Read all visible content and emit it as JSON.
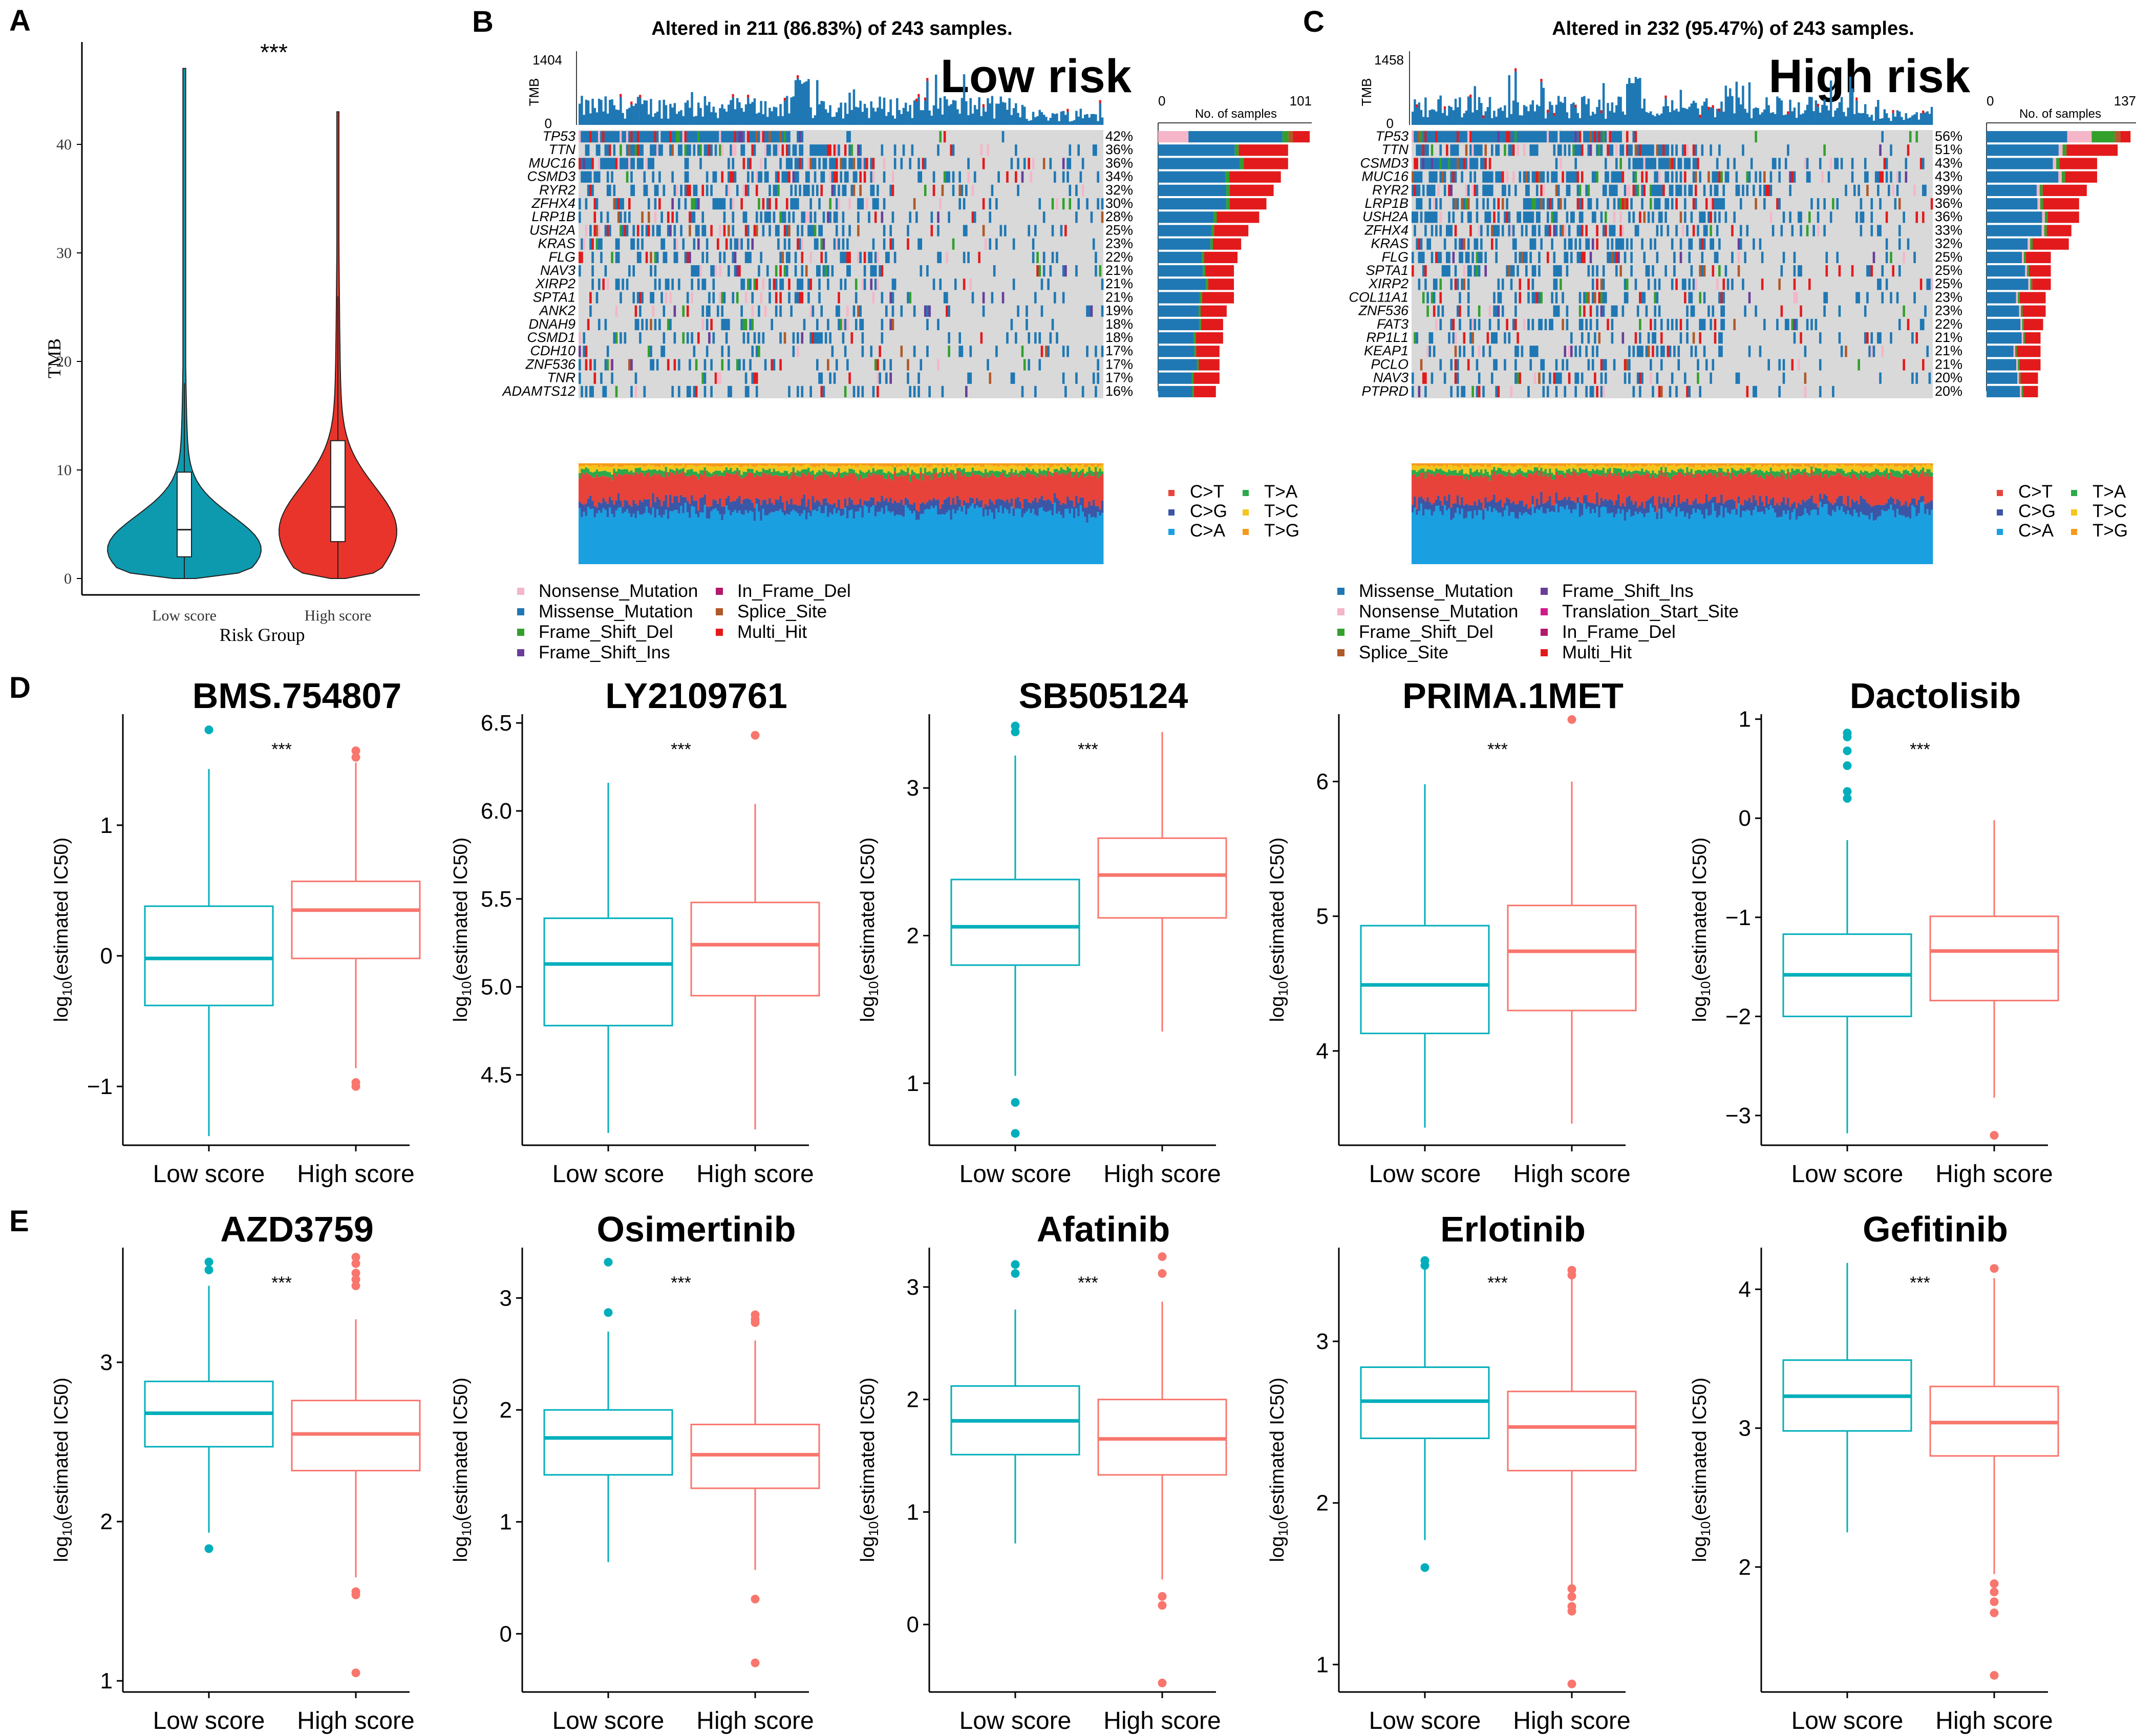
{
  "panel_letters": {
    "a": "A",
    "b": "B",
    "c": "C",
    "d": "D",
    "e": "E"
  },
  "colors": {
    "low": "#00AFBB",
    "high": "#F8766D",
    "violin_low": "#0E9AAE",
    "violin_high": "#E8342A",
    "missense": "#1F78B4",
    "nonsense": "#F4B6C8",
    "frame_shift_del": "#33A02C",
    "frame_shift_ins": "#6A3D9A",
    "in_frame_del": "#B2196A",
    "splice_site": "#B15928",
    "multi_hit": "#E31A1C",
    "translation_start_site": "#D01C8B",
    "grey": "#D9D9D9",
    "ti_CT": "#E8433A",
    "ti_CG": "#3B56A6",
    "ti_CA": "#1AA0E0",
    "ti_TA": "#2DA94A",
    "ti_TC": "#F5C51B",
    "ti_TG": "#F59A1B"
  },
  "panel_a": {
    "stars": "***",
    "ylabel": "TMB",
    "xlabel": "Risk Group",
    "groups": [
      "Low score",
      "High score"
    ],
    "yticks": [
      "0",
      "10",
      "20",
      "30",
      "40"
    ],
    "chart_data": {
      "type": "violin",
      "ylabel": "TMB",
      "xlabel": "Risk Group",
      "ylim": [
        0,
        48
      ],
      "groups": [
        {
          "name": "Low score",
          "min": 0.3,
          "q1": 2.0,
          "median": 4.5,
          "q3": 9.8,
          "max": 47,
          "whisker_high": 18
        },
        {
          "name": "High score",
          "min": 0.3,
          "q1": 3.4,
          "median": 6.6,
          "q3": 12.7,
          "max": 43,
          "whisker_high": 26
        }
      ]
    }
  },
  "oncoplot_b": {
    "title": "Altered in 211 (86.83%) of 243 samples.",
    "risk": "Low risk",
    "tmb_label": "TMB",
    "tmb_max": "1404",
    "tmb_min": "0",
    "bar_label": "No. of samples",
    "bar_min": "0",
    "bar_max": "101",
    "genes": [
      "TP53",
      "TTN",
      "MUC16",
      "CSMD3",
      "RYR2",
      "ZFHX4",
      "LRP1B",
      "USH2A",
      "KRAS",
      "FLG",
      "NAV3",
      "XIRP2",
      "SPTA1",
      "ANK2",
      "DNAH9",
      "CSMD1",
      "CDH10",
      "ZNF536",
      "TNR",
      "ADAMTS12"
    ],
    "pcts": [
      "42%",
      "36%",
      "36%",
      "34%",
      "32%",
      "30%",
      "28%",
      "25%",
      "23%",
      "22%",
      "21%",
      "21%",
      "21%",
      "19%",
      "18%",
      "18%",
      "17%",
      "17%",
      "17%",
      "16%"
    ],
    "legend": [
      "Nonsense_Mutation",
      "Missense_Mutation",
      "Frame_Shift_Del",
      "Frame_Shift_Ins",
      "In_Frame_Del",
      "Splice_Site",
      "Multi_Hit"
    ],
    "ti_legend": [
      "C>T",
      "C>G",
      "C>A",
      "T>A",
      "T>C",
      "T>G"
    ]
  },
  "oncoplot_c": {
    "title": "Altered in 232 (95.47%) of 243 samples.",
    "risk": "High risk",
    "tmb_label": "TMB",
    "tmb_max": "1458",
    "tmb_min": "0",
    "bar_label": "No. of samples",
    "bar_min": "0",
    "bar_max": "137",
    "genes": [
      "TP53",
      "TTN",
      "CSMD3",
      "MUC16",
      "RYR2",
      "LRP1B",
      "USH2A",
      "ZFHX4",
      "KRAS",
      "FLG",
      "SPTA1",
      "XIRP2",
      "COL11A1",
      "ZNF536",
      "FAT3",
      "RP1L1",
      "KEAP1",
      "PCLO",
      "NAV3",
      "PTPRD"
    ],
    "pcts": [
      "56%",
      "51%",
      "43%",
      "43%",
      "39%",
      "36%",
      "36%",
      "33%",
      "32%",
      "25%",
      "25%",
      "25%",
      "23%",
      "23%",
      "22%",
      "21%",
      "21%",
      "21%",
      "20%",
      "20%"
    ],
    "legend": [
      "Missense_Mutation",
      "Nonsense_Mutation",
      "Frame_Shift_Del",
      "Splice_Site",
      "Frame_Shift_Ins",
      "Translation_Start_Site",
      "In_Frame_Del",
      "Multi_Hit"
    ],
    "ti_legend": [
      "C>T",
      "C>G",
      "C>A",
      "T>A",
      "T>C",
      "T>G"
    ]
  },
  "boxplots": {
    "ylabel_prefix": "log",
    "ylabel_sub": "10",
    "ylabel_suffix": "(estimated IC50)",
    "stars": "***",
    "categories": [
      "Low score",
      "High score"
    ],
    "panels": [
      {
        "title": "BMS.754807",
        "yticks": [
          "−1",
          "0",
          "1"
        ],
        "tickvals": [
          -1,
          0,
          1
        ],
        "ylim": [
          -1.45,
          1.85
        ],
        "low": {
          "min": -1.38,
          "q1": -0.38,
          "median": -0.02,
          "q3": 0.38,
          "max": 1.43,
          "outliers": [
            1.73
          ]
        },
        "high": {
          "min": -0.86,
          "q1": -0.02,
          "median": 0.35,
          "q3": 0.57,
          "max": 1.48,
          "outliers": [
            1.57,
            1.52,
            -0.97,
            -1.0
          ]
        }
      },
      {
        "title": "LY2109761",
        "yticks": [
          "4.5",
          "5.0",
          "5.5",
          "6.0",
          "6.5"
        ],
        "tickvals": [
          4.5,
          5.0,
          5.5,
          6.0,
          6.5
        ],
        "ylim": [
          4.1,
          6.55
        ],
        "low": {
          "min": 4.17,
          "q1": 4.78,
          "median": 5.13,
          "q3": 5.39,
          "max": 6.16,
          "outliers": []
        },
        "high": {
          "min": 4.19,
          "q1": 4.95,
          "median": 5.24,
          "q3": 5.48,
          "max": 6.04,
          "outliers": [
            6.43
          ]
        }
      },
      {
        "title": "SB505124",
        "yticks": [
          "1",
          "2",
          "3"
        ],
        "tickvals": [
          1,
          2,
          3
        ],
        "ylim": [
          0.58,
          3.5
        ],
        "low": {
          "min": 1.05,
          "q1": 1.8,
          "median": 2.06,
          "q3": 2.38,
          "max": 3.22,
          "outliers": [
            3.42,
            3.38,
            0.87,
            0.66
          ]
        },
        "high": {
          "min": 1.35,
          "q1": 2.12,
          "median": 2.41,
          "q3": 2.66,
          "max": 3.38,
          "outliers": []
        }
      },
      {
        "title": "PRIMA.1MET",
        "yticks": [
          "4",
          "5",
          "6"
        ],
        "tickvals": [
          4,
          5,
          6
        ],
        "ylim": [
          3.3,
          6.5
        ],
        "low": {
          "min": 3.43,
          "q1": 4.13,
          "median": 4.49,
          "q3": 4.93,
          "max": 5.98,
          "outliers": []
        },
        "high": {
          "min": 3.46,
          "q1": 4.3,
          "median": 4.74,
          "q3": 5.08,
          "max": 6.0,
          "outliers": [
            6.46
          ]
        }
      },
      {
        "title": "Dactolisib",
        "yticks": [
          "−3",
          "−2",
          "−1",
          "0",
          "1"
        ],
        "tickvals": [
          -3,
          -2,
          -1,
          0,
          1
        ],
        "ylim": [
          -3.3,
          1.05
        ],
        "low": {
          "min": -3.18,
          "q1": -2.0,
          "median": -1.58,
          "q3": -1.17,
          "max": -0.22,
          "outliers": [
            0.86,
            0.82,
            0.68,
            0.53,
            0.27,
            0.2
          ]
        },
        "high": {
          "min": -2.82,
          "q1": -1.84,
          "median": -1.34,
          "q3": -0.99,
          "max": -0.02,
          "outliers": [
            -3.2
          ]
        }
      },
      {
        "title": "AZD3759",
        "yticks": [
          "1",
          "2",
          "3"
        ],
        "tickvals": [
          1,
          2,
          3
        ],
        "ylim": [
          0.93,
          3.72
        ],
        "low": {
          "min": 1.93,
          "q1": 2.47,
          "median": 2.68,
          "q3": 2.88,
          "max": 3.48,
          "outliers": [
            3.63,
            3.58,
            1.83
          ]
        },
        "high": {
          "min": 1.65,
          "q1": 2.32,
          "median": 2.55,
          "q3": 2.76,
          "max": 3.27,
          "outliers": [
            3.66,
            3.62,
            3.56,
            3.52,
            3.48,
            1.56,
            1.54,
            1.05
          ]
        }
      },
      {
        "title": "Osimertinib",
        "yticks": [
          "0",
          "1",
          "2",
          "3"
        ],
        "tickvals": [
          0,
          1,
          2,
          3
        ],
        "ylim": [
          -0.52,
          3.45
        ],
        "low": {
          "min": 0.64,
          "q1": 1.42,
          "median": 1.75,
          "q3": 2.0,
          "max": 2.7,
          "outliers": [
            3.32,
            2.87
          ]
        },
        "high": {
          "min": 0.57,
          "q1": 1.3,
          "median": 1.6,
          "q3": 1.87,
          "max": 2.62,
          "outliers": [
            2.85,
            2.81,
            2.78,
            0.31,
            -0.26
          ]
        }
      },
      {
        "title": "Afatinib",
        "yticks": [
          "0",
          "1",
          "2",
          "3"
        ],
        "tickvals": [
          0,
          1,
          2,
          3
        ],
        "ylim": [
          -0.6,
          3.35
        ],
        "low": {
          "min": 0.72,
          "q1": 1.51,
          "median": 1.81,
          "q3": 2.12,
          "max": 2.8,
          "outliers": [
            3.2,
            3.12
          ]
        },
        "high": {
          "min": 0.4,
          "q1": 1.33,
          "median": 1.65,
          "q3": 2.0,
          "max": 2.87,
          "outliers": [
            3.27,
            3.12,
            0.25,
            0.17,
            -0.52
          ]
        }
      },
      {
        "title": "Erlotinib",
        "yticks": [
          "1",
          "2",
          "3"
        ],
        "tickvals": [
          1,
          2,
          3
        ],
        "ylim": [
          0.83,
          3.58
        ],
        "low": {
          "min": 1.77,
          "q1": 2.4,
          "median": 2.63,
          "q3": 2.84,
          "max": 3.47,
          "outliers": [
            3.5,
            3.47,
            1.6
          ]
        },
        "high": {
          "min": 1.45,
          "q1": 2.2,
          "median": 2.47,
          "q3": 2.69,
          "max": 3.4,
          "outliers": [
            3.44,
            3.41,
            1.47,
            1.42,
            1.36,
            1.33,
            0.88
          ]
        }
      },
      {
        "title": "Gefitinib",
        "yticks": [
          "2",
          "3",
          "4"
        ],
        "tickvals": [
          2,
          3,
          4
        ],
        "ylim": [
          1.1,
          4.3
        ],
        "low": {
          "min": 2.25,
          "q1": 2.98,
          "median": 3.23,
          "q3": 3.49,
          "max": 4.19,
          "outliers": []
        },
        "high": {
          "min": 1.95,
          "q1": 2.8,
          "median": 3.04,
          "q3": 3.3,
          "max": 4.08,
          "outliers": [
            4.15,
            1.88,
            1.82,
            1.75,
            1.67,
            1.22
          ]
        }
      }
    ]
  }
}
